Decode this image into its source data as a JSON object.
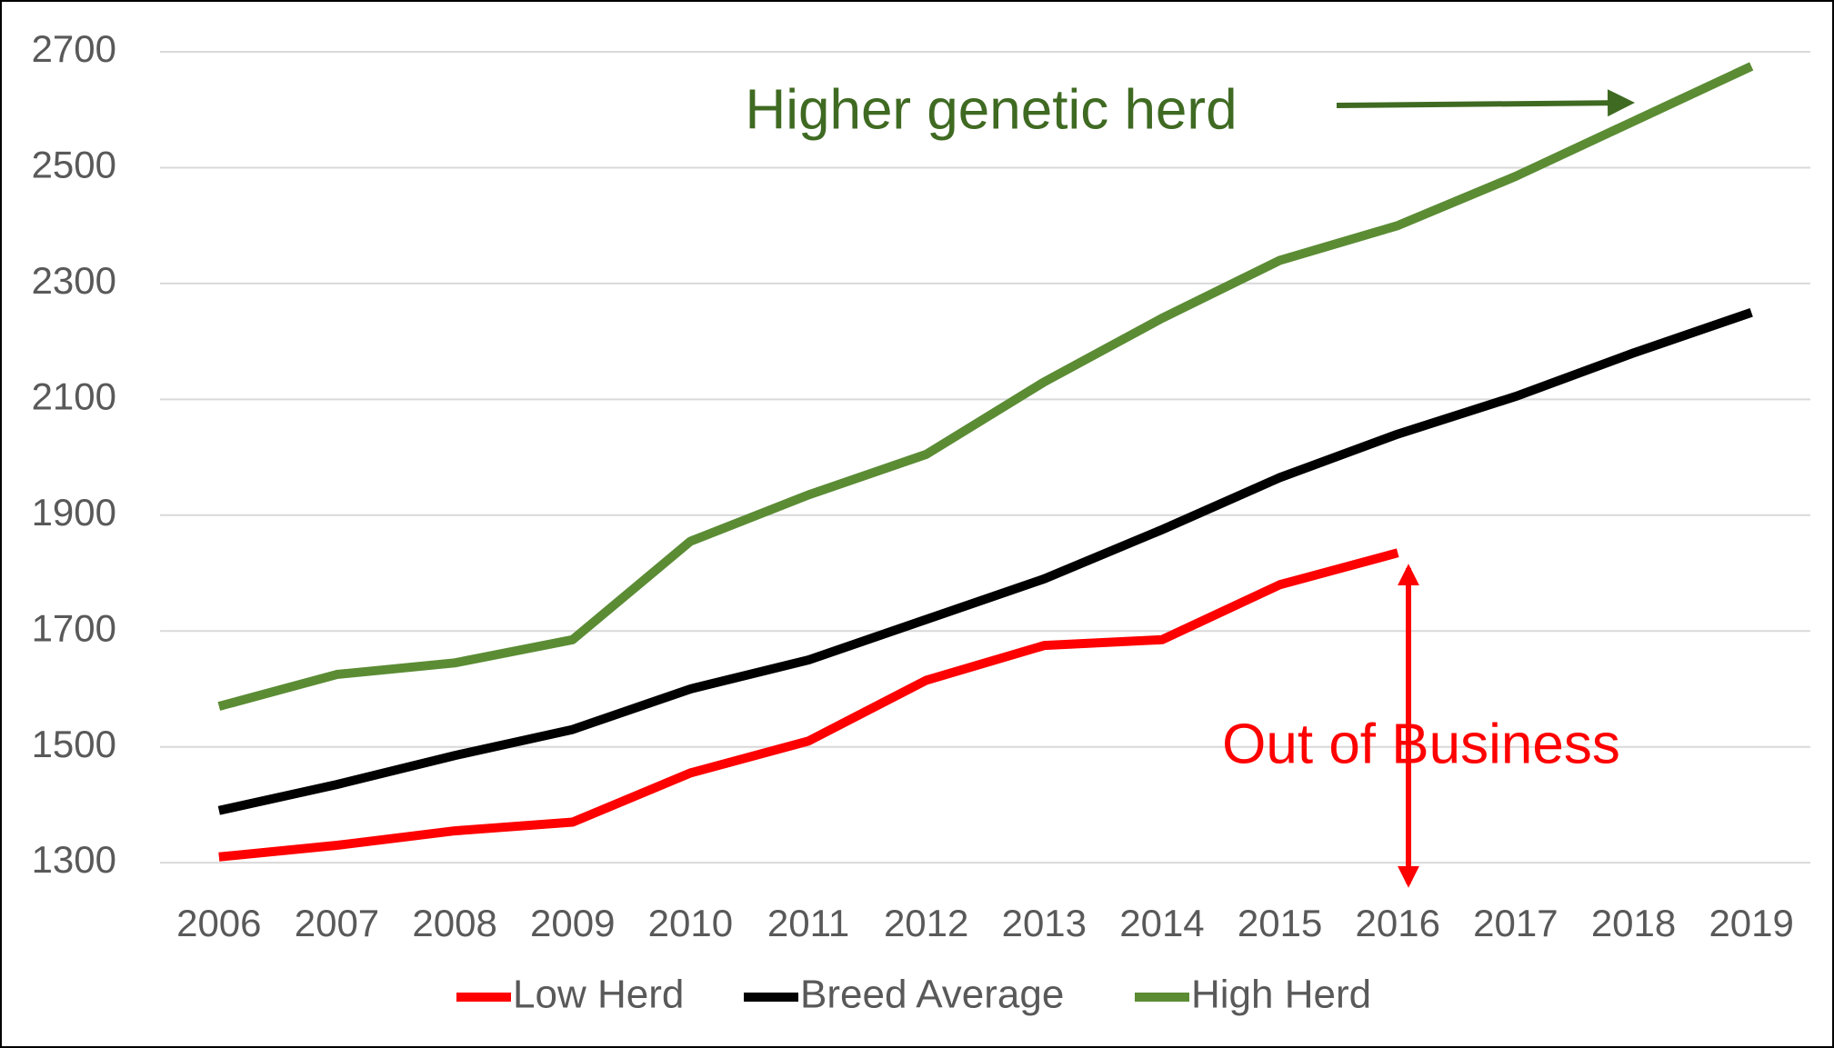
{
  "chart_data": {
    "type": "line",
    "categories": [
      "2006",
      "2007",
      "2008",
      "2009",
      "2010",
      "2011",
      "2012",
      "2013",
      "2014",
      "2015",
      "2016",
      "2017",
      "2018",
      "2019"
    ],
    "series": [
      {
        "name": "Low Herd",
        "color": "#ff0000",
        "values": [
          1310,
          1330,
          1355,
          1370,
          1455,
          1510,
          1615,
          1675,
          1685,
          1780,
          1835,
          null,
          null,
          null
        ]
      },
      {
        "name": "Breed Average",
        "color": "#000000",
        "values": [
          1390,
          1435,
          1485,
          1530,
          1600,
          1650,
          1720,
          1790,
          1875,
          1965,
          2040,
          2105,
          2180,
          2250
        ]
      },
      {
        "name": "High Herd",
        "color": "#5b8c34",
        "values": [
          1570,
          1625,
          1645,
          1685,
          1855,
          1935,
          2005,
          2130,
          2240,
          2340,
          2400,
          2485,
          2580,
          2675
        ]
      }
    ],
    "ylim": [
      1250,
      2700
    ],
    "yticks": [
      1300,
      1500,
      1700,
      1900,
      2100,
      2300,
      2500,
      2700
    ],
    "grid": true,
    "legend": "bottom",
    "annotations": [
      {
        "text": "Higher genetic herd",
        "color": "#3f6a22"
      },
      {
        "text": "Out of Business",
        "color": "#ff0000"
      }
    ]
  }
}
